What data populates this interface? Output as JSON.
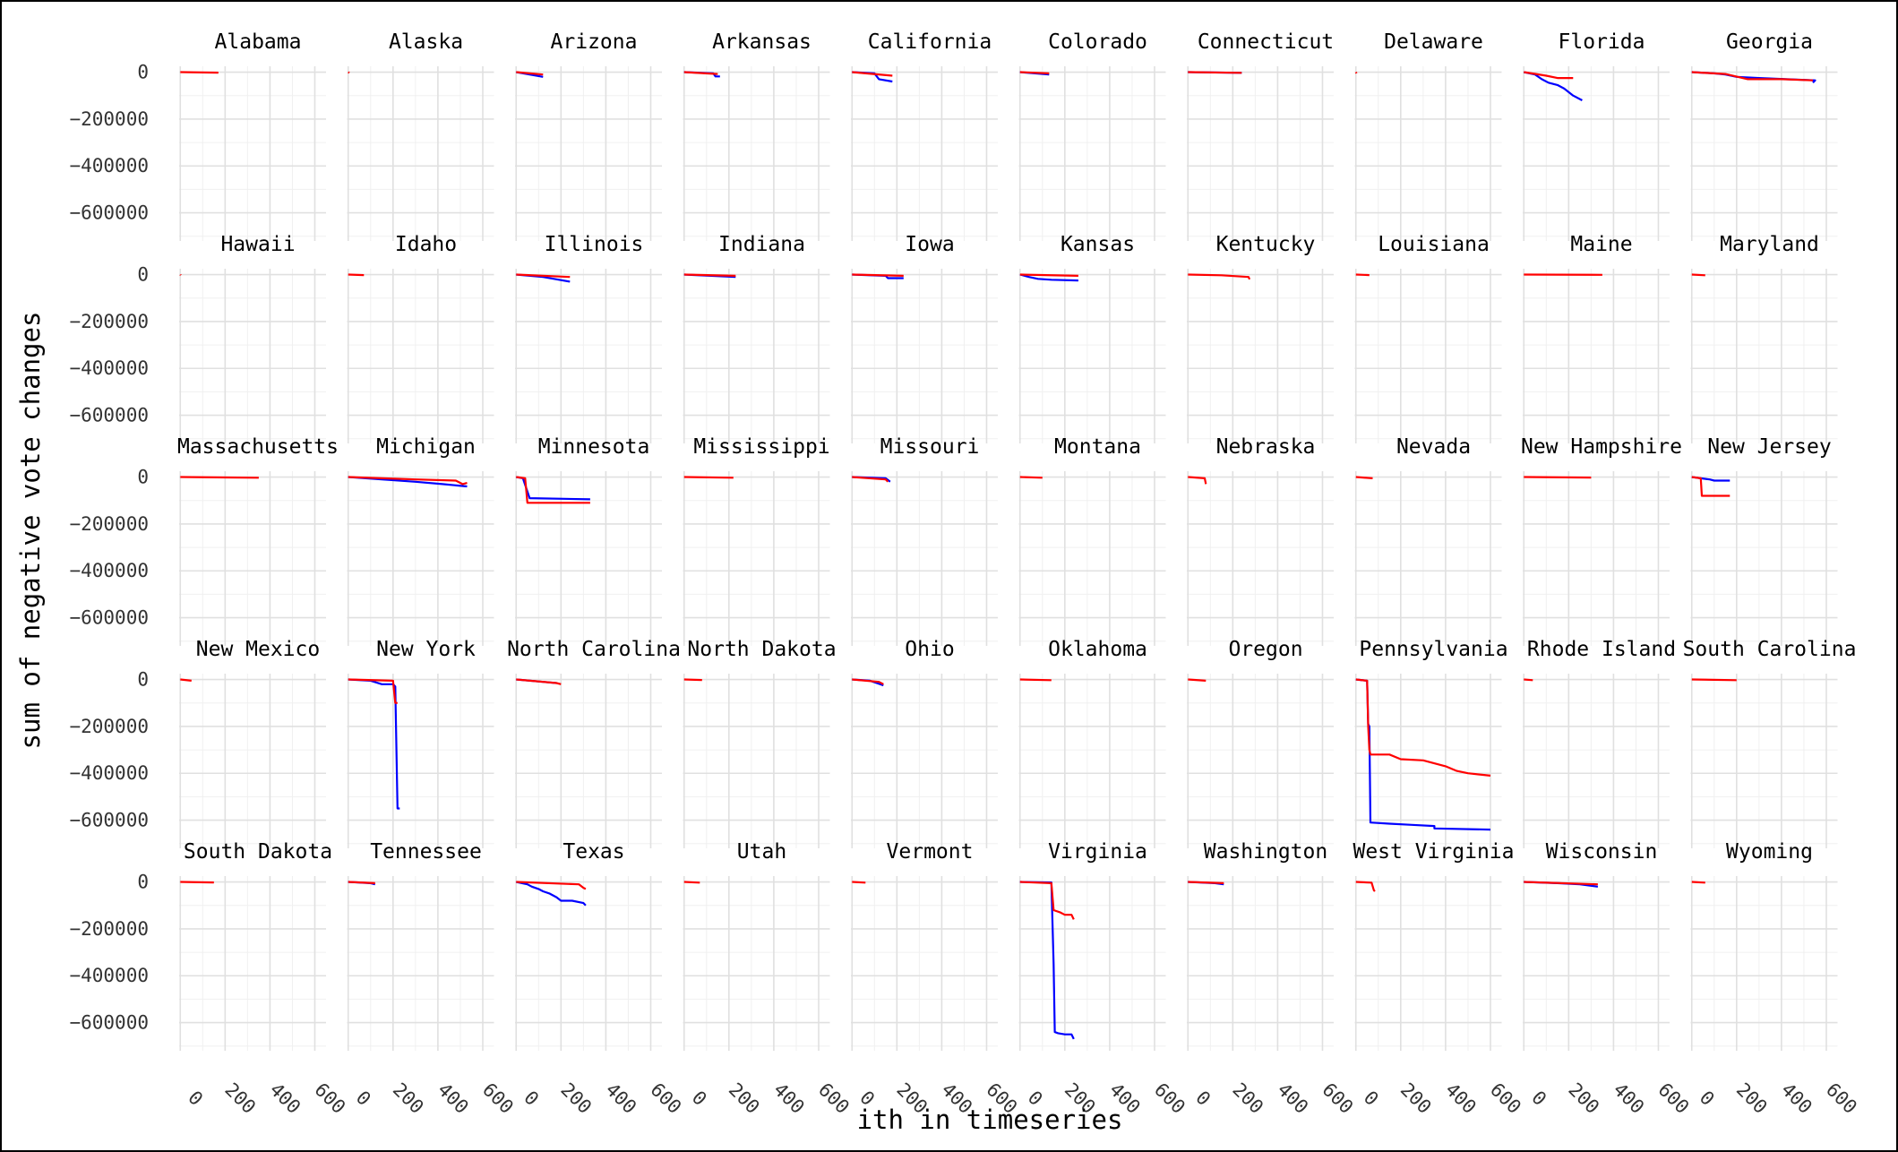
{
  "chart_data": {
    "type": "line",
    "facet": "state",
    "ylabel": "sum of negative vote changes",
    "xlabel": "ith in timeseries",
    "x_ticks": [
      0,
      200,
      400,
      600
    ],
    "y_ticks": [
      0,
      -200000,
      -400000,
      -600000
    ],
    "y_tick_labels": [
      "0",
      "−200000",
      "−400000",
      "−600000"
    ],
    "x_range": [
      -5,
      650
    ],
    "y_range": [
      -720000,
      25000
    ],
    "grid": true,
    "series_colors": {
      "blue": "#0000ff",
      "red": "#ff0000"
    },
    "facets": [
      {
        "state": "Alabama",
        "red": [
          [
            0,
            0
          ],
          [
            170,
            -2000
          ]
        ]
      },
      {
        "state": "Alaska",
        "red": [
          [
            0,
            0
          ],
          [
            5,
            -3000
          ]
        ]
      },
      {
        "state": "Arizona",
        "blue": [
          [
            0,
            0
          ],
          [
            120,
            -20000
          ]
        ],
        "red": [
          [
            0,
            0
          ],
          [
            120,
            -10000
          ]
        ]
      },
      {
        "state": "Arkansas",
        "blue": [
          [
            0,
            0
          ],
          [
            130,
            -5000
          ],
          [
            140,
            -18000
          ],
          [
            160,
            -18000
          ]
        ],
        "red": [
          [
            0,
            0
          ],
          [
            150,
            -8000
          ]
        ]
      },
      {
        "state": "California",
        "blue": [
          [
            0,
            0
          ],
          [
            100,
            -5000
          ],
          [
            120,
            -30000
          ],
          [
            180,
            -40000
          ]
        ],
        "red": [
          [
            0,
            0
          ],
          [
            180,
            -15000
          ]
        ]
      },
      {
        "state": "Colorado",
        "blue": [
          [
            0,
            0
          ],
          [
            130,
            -10000
          ]
        ],
        "red": [
          [
            0,
            0
          ],
          [
            130,
            -5000
          ]
        ]
      },
      {
        "state": "Connecticut",
        "blue": [
          [
            0,
            0
          ],
          [
            240,
            -3000
          ]
        ],
        "red": [
          [
            0,
            0
          ],
          [
            240,
            -3000
          ]
        ]
      },
      {
        "state": "Delaware",
        "red": [
          [
            0,
            0
          ],
          [
            3,
            -5000
          ]
        ]
      },
      {
        "state": "Florida",
        "blue": [
          [
            0,
            0
          ],
          [
            50,
            -10000
          ],
          [
            80,
            -30000
          ],
          [
            110,
            -45000
          ],
          [
            150,
            -55000
          ],
          [
            180,
            -70000
          ],
          [
            220,
            -100000
          ],
          [
            260,
            -120000
          ]
        ],
        "red": [
          [
            0,
            0
          ],
          [
            100,
            -15000
          ],
          [
            150,
            -25000
          ],
          [
            220,
            -25000
          ]
        ]
      },
      {
        "state": "Georgia",
        "blue": [
          [
            0,
            0
          ],
          [
            100,
            -5000
          ],
          [
            150,
            -10000
          ],
          [
            200,
            -20000
          ],
          [
            300,
            -25000
          ],
          [
            420,
            -30000
          ],
          [
            550,
            -35000
          ],
          [
            540,
            -45000
          ]
        ],
        "red": [
          [
            0,
            0
          ],
          [
            150,
            -8000
          ],
          [
            250,
            -30000
          ],
          [
            400,
            -30000
          ],
          [
            540,
            -35000
          ]
        ]
      },
      {
        "state": "Hawaii",
        "red": [
          [
            0,
            0
          ],
          [
            2,
            -3000
          ]
        ]
      },
      {
        "state": "Idaho",
        "red": [
          [
            0,
            0
          ],
          [
            70,
            -2000
          ]
        ]
      },
      {
        "state": "Illinois",
        "blue": [
          [
            0,
            0
          ],
          [
            120,
            -10000
          ],
          [
            180,
            -20000
          ],
          [
            240,
            -30000
          ]
        ],
        "red": [
          [
            0,
            0
          ],
          [
            240,
            -10000
          ]
        ]
      },
      {
        "state": "Indiana",
        "blue": [
          [
            0,
            0
          ],
          [
            230,
            -10000
          ]
        ],
        "red": [
          [
            0,
            0
          ],
          [
            230,
            -5000
          ]
        ]
      },
      {
        "state": "Iowa",
        "blue": [
          [
            0,
            0
          ],
          [
            150,
            -5000
          ],
          [
            160,
            -15000
          ],
          [
            230,
            -15000
          ]
        ],
        "red": [
          [
            0,
            0
          ],
          [
            230,
            -5000
          ]
        ]
      },
      {
        "state": "Kansas",
        "blue": [
          [
            0,
            0
          ],
          [
            40,
            -10000
          ],
          [
            80,
            -18000
          ],
          [
            140,
            -22000
          ],
          [
            260,
            -25000
          ]
        ],
        "red": [
          [
            0,
            0
          ],
          [
            260,
            -5000
          ]
        ]
      },
      {
        "state": "Kentucky",
        "red": [
          [
            0,
            0
          ],
          [
            150,
            -3000
          ],
          [
            270,
            -10000
          ],
          [
            275,
            -20000
          ]
        ]
      },
      {
        "state": "Louisiana",
        "red": [
          [
            0,
            0
          ],
          [
            60,
            -2000
          ]
        ]
      },
      {
        "state": "Maine",
        "red": [
          [
            0,
            0
          ],
          [
            350,
            -1000
          ]
        ]
      },
      {
        "state": "Maryland",
        "red": [
          [
            0,
            0
          ],
          [
            60,
            -3000
          ]
        ]
      },
      {
        "state": "Massachusetts",
        "red": [
          [
            0,
            0
          ],
          [
            350,
            -3000
          ]
        ]
      },
      {
        "state": "Michigan",
        "blue": [
          [
            0,
            0
          ],
          [
            150,
            -10000
          ],
          [
            300,
            -20000
          ],
          [
            420,
            -30000
          ],
          [
            530,
            -40000
          ]
        ],
        "red": [
          [
            0,
            0
          ],
          [
            300,
            -10000
          ],
          [
            480,
            -15000
          ],
          [
            510,
            -30000
          ],
          [
            530,
            -25000
          ]
        ]
      },
      {
        "state": "Minnesota",
        "blue": [
          [
            0,
            0
          ],
          [
            30,
            -5000
          ],
          [
            60,
            -90000
          ],
          [
            330,
            -95000
          ]
        ],
        "red": [
          [
            0,
            0
          ],
          [
            40,
            -5000
          ],
          [
            50,
            -110000
          ],
          [
            330,
            -110000
          ]
        ]
      },
      {
        "state": "Mississippi",
        "red": [
          [
            0,
            0
          ],
          [
            220,
            -3000
          ]
        ]
      },
      {
        "state": "Missouri",
        "blue": [
          [
            0,
            0
          ],
          [
            150,
            -5000
          ],
          [
            170,
            -20000
          ]
        ],
        "red": [
          [
            0,
            0
          ],
          [
            150,
            -10000
          ],
          [
            160,
            -20000
          ]
        ]
      },
      {
        "state": "Montana",
        "red": [
          [
            0,
            0
          ],
          [
            100,
            -3000
          ]
        ]
      },
      {
        "state": "Nebraska",
        "red": [
          [
            0,
            0
          ],
          [
            75,
            -5000
          ],
          [
            80,
            -30000
          ]
        ]
      },
      {
        "state": "Nevada",
        "red": [
          [
            0,
            0
          ],
          [
            75,
            -5000
          ]
        ]
      },
      {
        "state": "New Hampshire",
        "red": [
          [
            0,
            0
          ],
          [
            300,
            -2000
          ]
        ]
      },
      {
        "state": "New Jersey",
        "blue": [
          [
            0,
            0
          ],
          [
            40,
            -5000
          ],
          [
            80,
            -10000
          ],
          [
            100,
            -15000
          ],
          [
            170,
            -15000
          ]
        ],
        "red": [
          [
            0,
            0
          ],
          [
            40,
            -5000
          ],
          [
            45,
            -80000
          ],
          [
            170,
            -80000
          ]
        ]
      },
      {
        "state": "New Mexico",
        "red": [
          [
            0,
            0
          ],
          [
            50,
            -5000
          ]
        ]
      },
      {
        "state": "New York",
        "blue": [
          [
            0,
            0
          ],
          [
            100,
            -5000
          ],
          [
            150,
            -20000
          ],
          [
            200,
            -20000
          ],
          [
            210,
            -30000
          ],
          [
            220,
            -550000
          ],
          [
            230,
            -550000
          ]
        ],
        "red": [
          [
            0,
            0
          ],
          [
            200,
            -5000
          ],
          [
            210,
            -100000
          ],
          [
            220,
            -100000
          ]
        ]
      },
      {
        "state": "North Carolina",
        "blue": [
          [
            0,
            0
          ],
          [
            120,
            -10000
          ],
          [
            180,
            -15000
          ]
        ],
        "red": [
          [
            0,
            0
          ],
          [
            180,
            -15000
          ],
          [
            200,
            -20000
          ]
        ]
      },
      {
        "state": "North Dakota",
        "red": [
          [
            0,
            0
          ],
          [
            80,
            -2000
          ]
        ]
      },
      {
        "state": "Ohio",
        "blue": [
          [
            0,
            0
          ],
          [
            80,
            -5000
          ],
          [
            110,
            -15000
          ],
          [
            140,
            -25000
          ]
        ],
        "red": [
          [
            0,
            0
          ],
          [
            120,
            -10000
          ],
          [
            140,
            -20000
          ]
        ]
      },
      {
        "state": "Oklahoma",
        "red": [
          [
            0,
            0
          ],
          [
            140,
            -3000
          ]
        ]
      },
      {
        "state": "Oregon",
        "red": [
          [
            0,
            0
          ],
          [
            80,
            -5000
          ]
        ]
      },
      {
        "state": "Pennsylvania",
        "blue": [
          [
            0,
            0
          ],
          [
            50,
            -5000
          ],
          [
            55,
            -190000
          ],
          [
            60,
            -200000
          ],
          [
            65,
            -610000
          ],
          [
            150,
            -615000
          ],
          [
            250,
            -620000
          ],
          [
            350,
            -625000
          ],
          [
            350,
            -635000
          ],
          [
            600,
            -640000
          ]
        ],
        "red": [
          [
            0,
            0
          ],
          [
            50,
            -5000
          ],
          [
            55,
            -200000
          ],
          [
            60,
            -300000
          ],
          [
            65,
            -320000
          ],
          [
            150,
            -320000
          ],
          [
            200,
            -340000
          ],
          [
            300,
            -345000
          ],
          [
            400,
            -370000
          ],
          [
            450,
            -390000
          ],
          [
            500,
            -400000
          ],
          [
            600,
            -410000
          ]
        ]
      },
      {
        "state": "Rhode Island",
        "red": [
          [
            0,
            0
          ],
          [
            40,
            -3000
          ]
        ]
      },
      {
        "state": "South Carolina",
        "red": [
          [
            0,
            0
          ],
          [
            200,
            -3000
          ]
        ]
      },
      {
        "state": "South Dakota",
        "red": [
          [
            0,
            0
          ],
          [
            150,
            -2000
          ]
        ]
      },
      {
        "state": "Tennessee",
        "blue": [
          [
            0,
            0
          ],
          [
            100,
            -5000
          ],
          [
            120,
            -10000
          ]
        ],
        "red": [
          [
            0,
            0
          ],
          [
            120,
            -5000
          ]
        ]
      },
      {
        "state": "Texas",
        "blue": [
          [
            0,
            0
          ],
          [
            50,
            -10000
          ],
          [
            70,
            -20000
          ],
          [
            100,
            -30000
          ],
          [
            120,
            -40000
          ],
          [
            150,
            -50000
          ],
          [
            180,
            -65000
          ],
          [
            200,
            -80000
          ],
          [
            250,
            -80000
          ],
          [
            300,
            -90000
          ],
          [
            310,
            -100000
          ]
        ],
        "red": [
          [
            0,
            0
          ],
          [
            280,
            -10000
          ],
          [
            300,
            -25000
          ],
          [
            310,
            -30000
          ]
        ]
      },
      {
        "state": "Utah",
        "red": [
          [
            0,
            0
          ],
          [
            70,
            -3000
          ]
        ]
      },
      {
        "state": "Vermont",
        "red": [
          [
            0,
            0
          ],
          [
            60,
            -3000
          ]
        ]
      },
      {
        "state": "Virginia",
        "blue": [
          [
            0,
            0
          ],
          [
            140,
            -2000
          ],
          [
            150,
            -350000
          ],
          [
            155,
            -640000
          ],
          [
            170,
            -645000
          ],
          [
            200,
            -650000
          ],
          [
            230,
            -650000
          ],
          [
            240,
            -670000
          ]
        ],
        "red": [
          [
            0,
            0
          ],
          [
            140,
            -5000
          ],
          [
            150,
            -120000
          ],
          [
            180,
            -130000
          ],
          [
            200,
            -140000
          ],
          [
            230,
            -140000
          ],
          [
            240,
            -160000
          ]
        ]
      },
      {
        "state": "Washington",
        "blue": [
          [
            0,
            0
          ],
          [
            120,
            -5000
          ],
          [
            160,
            -10000
          ]
        ],
        "red": [
          [
            0,
            0
          ],
          [
            160,
            -5000
          ]
        ]
      },
      {
        "state": "West Virginia",
        "red": [
          [
            0,
            0
          ],
          [
            70,
            -3000
          ],
          [
            80,
            -35000
          ],
          [
            85,
            -40000
          ]
        ]
      },
      {
        "state": "Wisconsin",
        "blue": [
          [
            0,
            0
          ],
          [
            150,
            -5000
          ],
          [
            250,
            -10000
          ],
          [
            330,
            -20000
          ]
        ],
        "red": [
          [
            0,
            0
          ],
          [
            330,
            -10000
          ]
        ]
      },
      {
        "state": "Wyoming",
        "red": [
          [
            0,
            0
          ],
          [
            60,
            -3000
          ]
        ]
      }
    ]
  }
}
